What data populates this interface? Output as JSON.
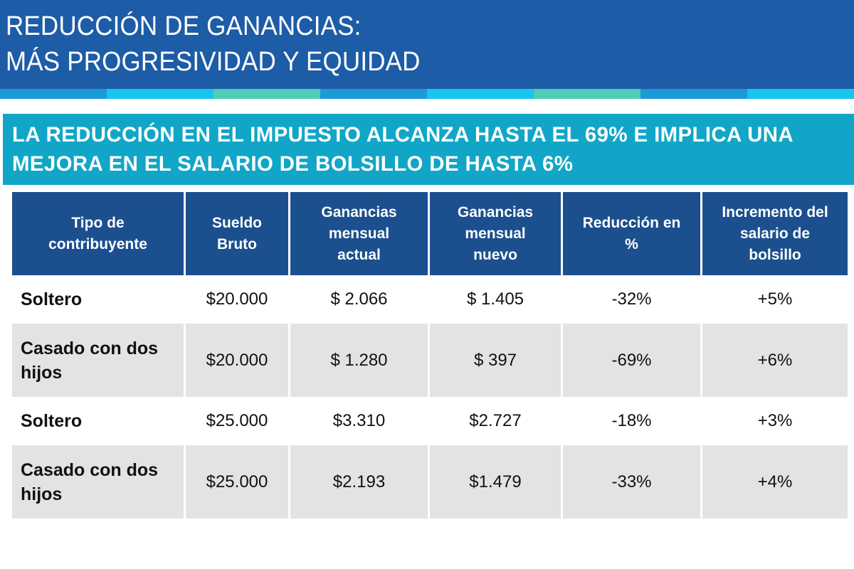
{
  "header": {
    "title_line1": "REDUCCIÓN DE GANANCIAS:",
    "title_line2": "MÁS PROGRESIVIDAD Y EQUIDAD"
  },
  "stripe_colors": [
    "#1a9ad6",
    "#19c4ee",
    "#4fcdb7",
    "#1a9ad6",
    "#19c4ee",
    "#4fcdb7",
    "#1a9ad6",
    "#19c4ee"
  ],
  "banner": {
    "line1": "LA REDUCCIÓN EN EL IMPUESTO ALCANZA HASTA EL 69% E IMPLICA UNA",
    "line2": "MEJORA EN EL SALARIO DE BOLSILLO DE HASTA 6%"
  },
  "table": {
    "headers": [
      [
        "Tipo de",
        "contribuyente"
      ],
      [
        "Sueldo",
        "Bruto"
      ],
      [
        "Ganancias",
        "mensual",
        "actual"
      ],
      [
        "Ganancias",
        "mensual",
        "nuevo"
      ],
      [
        "Reducción en",
        "%"
      ],
      [
        "Incremento del",
        "salario de",
        "bolsillo"
      ]
    ],
    "rows": [
      {
        "tipo": "Soltero",
        "sueldo": "$20.000",
        "actual": "$ 2.066",
        "nuevo": "$ 1.405",
        "reduccion": "-32%",
        "incremento": "+5%"
      },
      {
        "tipo": "Casado con dos hijos",
        "sueldo": "$20.000",
        "actual": "$ 1.280",
        "nuevo": "$ 397",
        "reduccion": "-69%",
        "incremento": "+6%"
      },
      {
        "tipo": "Soltero",
        "sueldo": "$25.000",
        "actual": "$3.310",
        "nuevo": "$2.727",
        "reduccion": "-18%",
        "incremento": "+3%"
      },
      {
        "tipo": "Casado con dos hijos",
        "sueldo": "$25.000",
        "actual": "$2.193",
        "nuevo": "$1.479",
        "reduccion": "-33%",
        "incremento": "+4%"
      }
    ]
  }
}
